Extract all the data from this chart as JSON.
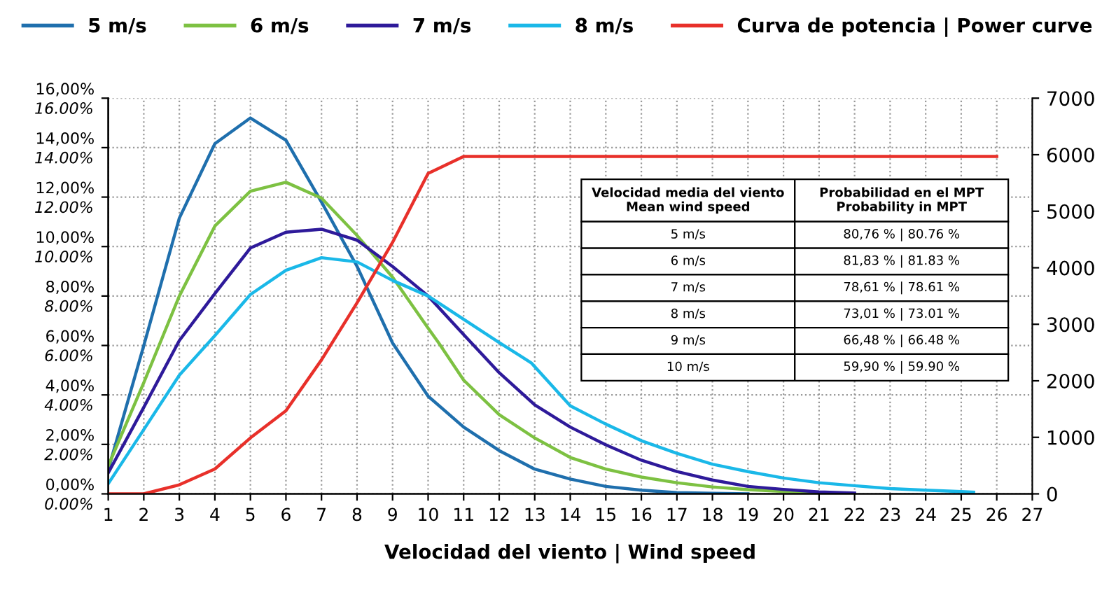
{
  "chart_data": {
    "type": "line",
    "xlabel": "Velocidad del viento | Wind speed",
    "x": [
      1,
      2,
      3,
      4,
      5,
      6,
      7,
      8,
      9,
      10,
      11,
      12,
      13,
      14,
      15,
      16,
      17,
      18,
      19
    ],
    "series": [
      {
        "name": "5 m/s",
        "color": "#1f6fad",
        "values": [
          0.98,
          6.0,
          11.15,
          14.16,
          15.2,
          14.3,
          11.8,
          9.2,
          6.1,
          3.95,
          2.7,
          1.75,
          1.0,
          0.6,
          0.3,
          0.15,
          0.05,
          0.02,
          0
        ]
      },
      {
        "name": "6 m/s",
        "color": "#7dc142",
        "x": [
          1,
          2,
          3,
          4,
          5,
          6,
          7,
          8,
          9,
          10,
          10.3,
          11,
          12,
          13,
          14,
          15,
          16,
          17,
          18,
          19,
          20,
          21
        ],
        "values": [
          1.13,
          4.5,
          8.0,
          10.83,
          12.24,
          12.6,
          11.96,
          10.45,
          8.76,
          6.7,
          6.1,
          4.6,
          3.2,
          2.26,
          1.47,
          1.0,
          0.68,
          0.45,
          0.28,
          0.17,
          0.1,
          0.05
        ]
      },
      {
        "name": "7 m/s",
        "color": "#2e1a9a",
        "x": [
          1,
          2,
          3,
          4,
          5,
          6,
          7,
          8,
          9,
          10,
          11,
          12,
          13,
          14,
          15,
          16,
          17,
          18,
          19,
          20,
          21,
          22
        ],
        "values": [
          0.85,
          3.5,
          6.2,
          8.1,
          9.94,
          10.58,
          10.7,
          10.26,
          9.19,
          8.0,
          6.44,
          4.9,
          3.6,
          2.7,
          1.98,
          1.36,
          0.9,
          0.56,
          0.3,
          0.18,
          0.08,
          0.03
        ]
      },
      {
        "name": "8 m/s",
        "color": "#1ab8e8",
        "x": [
          1,
          2,
          3,
          4,
          5,
          6,
          7,
          8,
          9,
          10,
          11,
          12,
          12.9,
          14,
          15,
          16,
          17,
          18,
          19,
          20,
          21,
          22,
          23,
          24,
          25,
          25.35
        ],
        "values": [
          0.41,
          2.6,
          4.8,
          6.4,
          8.06,
          9.04,
          9.55,
          9.38,
          8.63,
          8.0,
          7.06,
          6.12,
          5.3,
          3.56,
          2.82,
          2.15,
          1.64,
          1.2,
          0.9,
          0.64,
          0.45,
          0.33,
          0.21,
          0.15,
          0.09,
          0.07
        ]
      },
      {
        "name": "Curva de potencia | Power curve",
        "color": "#e8302a",
        "axis": "y2",
        "x": [
          1,
          2,
          3,
          4,
          5,
          6,
          7,
          8,
          9,
          10,
          11,
          26
        ],
        "values": [
          0,
          0,
          160,
          440,
          990,
          1470,
          2370,
          3380,
          4450,
          5670,
          5970,
          5970
        ]
      }
    ],
    "xlim": [
      1,
      27
    ],
    "xticks": [
      1,
      2,
      3,
      4,
      5,
      6,
      7,
      8,
      9,
      10,
      11,
      12,
      13,
      14,
      15,
      16,
      17,
      18,
      19,
      20,
      21,
      22,
      23,
      24,
      25,
      26,
      27
    ],
    "ylim": [
      0,
      16
    ],
    "yticks": [
      {
        "value": 0,
        "label": "0,00%"
      },
      {
        "value": 2,
        "label": "2,00%"
      },
      {
        "value": 4,
        "label": "4,00%"
      },
      {
        "value": 6,
        "label": "6,00%"
      },
      {
        "value": 8,
        "label": "8,00%"
      },
      {
        "value": 10,
        "label": "10,00%"
      },
      {
        "value": 12,
        "label": "12,00%"
      },
      {
        "value": 14,
        "label": "14,00%"
      },
      {
        "value": 16,
        "label": "16,00%"
      }
    ],
    "y3lim": [
      0,
      16
    ],
    "y3ticks": [
      {
        "value": 0,
        "label": "0.00%"
      },
      {
        "value": 2,
        "label": "2.00%"
      },
      {
        "value": 4,
        "label": "4.00%"
      },
      {
        "value": 6,
        "label": "6.00%"
      },
      {
        "value": 8,
        "label": "8.00%"
      },
      {
        "value": 10,
        "label": "10.00%"
      },
      {
        "value": 12,
        "label": "12.00%"
      },
      {
        "value": 14,
        "label": "14.00%"
      },
      {
        "value": 16,
        "label": "16.00%"
      }
    ],
    "y2lim": [
      0,
      7000
    ],
    "y2ticks": [
      0,
      1000,
      2000,
      3000,
      4000,
      5000,
      6000,
      7000
    ],
    "grid": true,
    "legend": "top",
    "line_style": "solid",
    "marker": "none",
    "annotations": [
      "Velocidad media del viento\nMean wind speed",
      "Probabilidad en el MPT\nProbability in MPT",
      "5 m/s",
      "80,76 % | 80.76 %",
      "6 m/s",
      "81,83 % | 81.83 %",
      "7 m/s",
      "78,61 % | 78.61 %",
      "8 m/s",
      "73,01 % | 73.01 %",
      "9 m/s",
      "66,48 % | 66.48 %",
      "10 m/s",
      "59,90 % | 59.90 %"
    ]
  }
}
